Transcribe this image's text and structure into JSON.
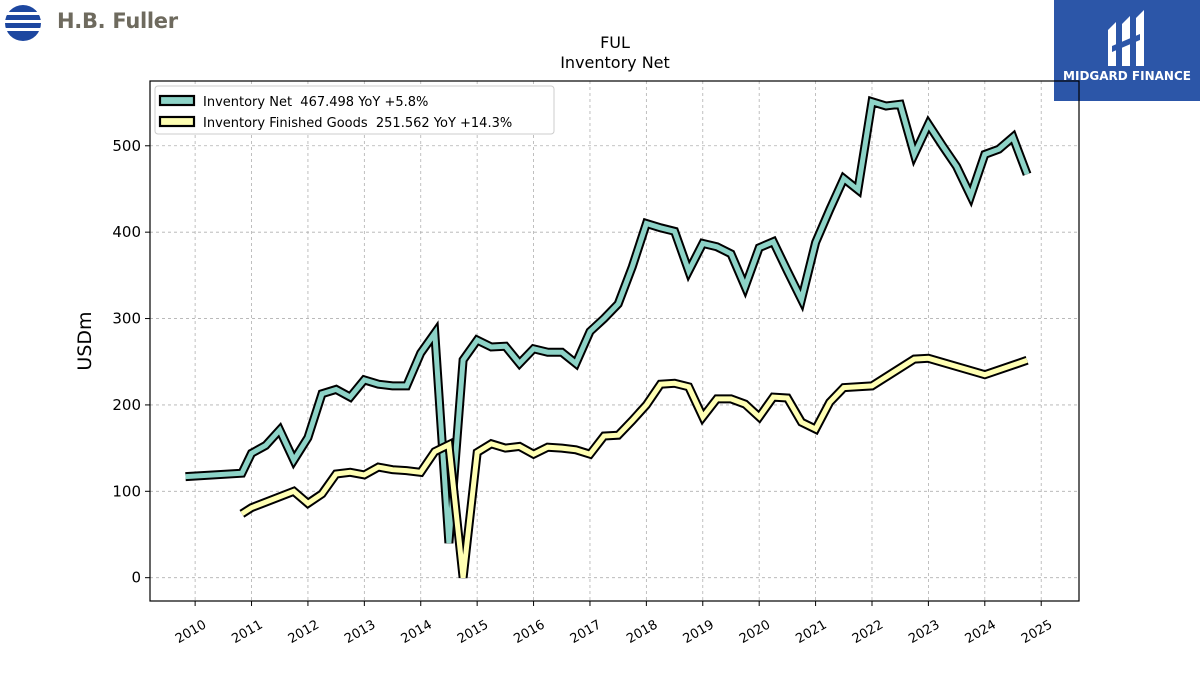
{
  "header": {
    "company_brand": "H.B. Fuller",
    "publisher_brand": "MIDGARD FINANCE"
  },
  "chart_data": {
    "type": "line",
    "title": "FUL",
    "subtitle": "Inventory Net",
    "ylabel": "USDm",
    "xlabel": "",
    "ylim": [
      -27,
      575
    ],
    "xlim": [
      2009.2,
      2025.67
    ],
    "yticks": [
      0,
      100,
      200,
      300,
      400,
      500
    ],
    "xticks": [
      "2010",
      "2011",
      "2012",
      "2013",
      "2014",
      "2015",
      "2016",
      "2017",
      "2018",
      "2019",
      "2020",
      "2021",
      "2022",
      "2023",
      "2024",
      "2025"
    ],
    "grid": true,
    "legend_position": "top-left",
    "series": [
      {
        "name": "Inventory Net  467.498 YoY +5.8%",
        "color": "#8dd3c7",
        "points": [
          [
            2009.83,
            117
          ],
          [
            2010.83,
            121
          ],
          [
            2011.0,
            144
          ],
          [
            2011.25,
            153
          ],
          [
            2011.5,
            171
          ],
          [
            2011.75,
            136
          ],
          [
            2012.0,
            162
          ],
          [
            2012.25,
            213
          ],
          [
            2012.5,
            218
          ],
          [
            2012.75,
            209
          ],
          [
            2013.0,
            229
          ],
          [
            2013.25,
            224
          ],
          [
            2013.5,
            222
          ],
          [
            2013.75,
            222
          ],
          [
            2014.0,
            260
          ],
          [
            2014.25,
            283
          ],
          [
            2014.5,
            40
          ],
          [
            2014.75,
            252
          ],
          [
            2015.0,
            275
          ],
          [
            2015.25,
            267
          ],
          [
            2015.5,
            268
          ],
          [
            2015.75,
            248
          ],
          [
            2016.0,
            265
          ],
          [
            2016.25,
            261
          ],
          [
            2016.5,
            261
          ],
          [
            2016.75,
            248
          ],
          [
            2017.0,
            285
          ],
          [
            2017.25,
            300
          ],
          [
            2017.5,
            317
          ],
          [
            2017.75,
            360
          ],
          [
            2018.0,
            410
          ],
          [
            2018.25,
            405
          ],
          [
            2018.5,
            401
          ],
          [
            2018.75,
            355
          ],
          [
            2019.0,
            387
          ],
          [
            2019.25,
            383
          ],
          [
            2019.5,
            375
          ],
          [
            2019.75,
            337
          ],
          [
            2020.0,
            382
          ],
          [
            2020.25,
            389
          ],
          [
            2020.5,
            355
          ],
          [
            2020.75,
            322
          ],
          [
            2021.0,
            388
          ],
          [
            2021.25,
            426
          ],
          [
            2021.5,
            462
          ],
          [
            2021.75,
            449
          ],
          [
            2022.0,
            551
          ],
          [
            2022.25,
            546
          ],
          [
            2022.5,
            548
          ],
          [
            2022.75,
            490
          ],
          [
            2023.0,
            525
          ],
          [
            2023.25,
            500
          ],
          [
            2023.5,
            476
          ],
          [
            2023.75,
            442
          ],
          [
            2024.0,
            490
          ],
          [
            2024.25,
            496
          ],
          [
            2024.5,
            510
          ],
          [
            2024.75,
            467
          ]
        ]
      },
      {
        "name": "Inventory Finished Goods  251.562 YoY +14.3%",
        "color": "#ffffb3",
        "points": [
          [
            2010.83,
            74
          ],
          [
            2011.0,
            81
          ],
          [
            2011.75,
            100
          ],
          [
            2012.0,
            86
          ],
          [
            2012.25,
            97
          ],
          [
            2012.5,
            120
          ],
          [
            2012.75,
            122
          ],
          [
            2013.0,
            119
          ],
          [
            2013.25,
            128
          ],
          [
            2013.5,
            125
          ],
          [
            2013.75,
            124
          ],
          [
            2014.0,
            122
          ],
          [
            2014.25,
            146
          ],
          [
            2014.5,
            154
          ],
          [
            2014.75,
            0
          ],
          [
            2015.0,
            145
          ],
          [
            2015.25,
            155
          ],
          [
            2015.5,
            150
          ],
          [
            2015.75,
            152
          ],
          [
            2016.0,
            143
          ],
          [
            2016.25,
            151
          ],
          [
            2016.5,
            150
          ],
          [
            2016.75,
            148
          ],
          [
            2017.0,
            143
          ],
          [
            2017.25,
            164
          ],
          [
            2017.5,
            165
          ],
          [
            2017.75,
            182
          ],
          [
            2018.0,
            200
          ],
          [
            2018.25,
            224
          ],
          [
            2018.5,
            225
          ],
          [
            2018.75,
            221
          ],
          [
            2019.0,
            186
          ],
          [
            2019.25,
            207
          ],
          [
            2019.5,
            207
          ],
          [
            2019.75,
            201
          ],
          [
            2020.0,
            186
          ],
          [
            2020.25,
            209
          ],
          [
            2020.5,
            208
          ],
          [
            2020.75,
            180
          ],
          [
            2021.0,
            172
          ],
          [
            2021.25,
            203
          ],
          [
            2021.5,
            220
          ],
          [
            2021.75,
            221
          ],
          [
            2022.0,
            222
          ],
          [
            2022.75,
            253
          ],
          [
            2023.0,
            254
          ],
          [
            2024.0,
            235
          ],
          [
            2024.75,
            251.6
          ]
        ]
      }
    ]
  }
}
